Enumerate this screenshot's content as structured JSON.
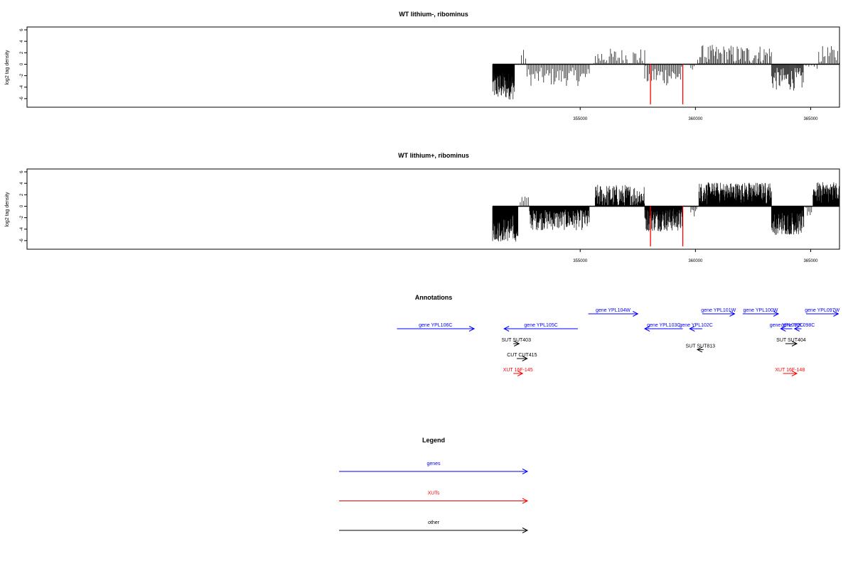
{
  "colors": {
    "genes": "#0000ff",
    "xuts": "#ff0000",
    "other": "#000000",
    "marker": "#ff0000",
    "signal": "#000000"
  },
  "chart_data": [
    {
      "type": "bar",
      "title": "WT lithium-, ribominus",
      "ylabel": "log2 tag density",
      "xlim": [
        331000,
        366250
      ],
      "ylim": [
        -7.5,
        6.5
      ],
      "yticks": [
        6,
        4,
        2,
        0,
        -2,
        -4,
        -6
      ],
      "xticks": [
        355000,
        360000,
        365000
      ],
      "baseline_range": [
        351200,
        366250
      ],
      "marker_lines": [
        358050,
        359450
      ],
      "marker_ymin": -7.0,
      "grid": false,
      "segments": [
        {
          "start": 351200,
          "end": 352150,
          "base": -3.8,
          "amp": 2.4,
          "step": 12
        },
        {
          "start": 352450,
          "end": 352700,
          "base": 1.6,
          "amp": 1.0,
          "step": 90
        },
        {
          "start": 352700,
          "end": 355400,
          "base": -2.2,
          "amp": 1.6,
          "step": 55
        },
        {
          "start": 355600,
          "end": 357800,
          "base": 1.2,
          "amp": 1.6,
          "step": 55
        },
        {
          "start": 357800,
          "end": 359450,
          "base": -2.0,
          "amp": 1.8,
          "step": 50
        },
        {
          "start": 359800,
          "end": 360000,
          "base": -0.8,
          "amp": 0.6,
          "step": 70
        },
        {
          "start": 360100,
          "end": 363300,
          "base": 1.6,
          "amp": 1.8,
          "step": 45
        },
        {
          "start": 363300,
          "end": 364700,
          "base": -2.6,
          "amp": 2.0,
          "step": 30
        },
        {
          "start": 364800,
          "end": 365300,
          "base": -0.4,
          "amp": 0.4,
          "step": 120
        },
        {
          "start": 365350,
          "end": 366250,
          "base": 1.6,
          "amp": 1.6,
          "step": 55
        }
      ]
    },
    {
      "type": "bar",
      "title": "WT lithium+, ribominus",
      "ylabel": "log2 tag density",
      "xlim": [
        331000,
        366250
      ],
      "ylim": [
        -7.5,
        6.5
      ],
      "yticks": [
        6,
        4,
        2,
        0,
        -2,
        -4,
        -6
      ],
      "xticks": [
        355000,
        360000,
        365000
      ],
      "baseline_range": [
        351200,
        366250
      ],
      "marker_lines": [
        358050,
        359450
      ],
      "marker_ymin": -7.0,
      "grid": false,
      "segments": [
        {
          "start": 351200,
          "end": 352300,
          "base": -3.8,
          "amp": 2.4,
          "step": 10
        },
        {
          "start": 352400,
          "end": 352800,
          "base": 1.0,
          "amp": 1.4,
          "step": 70
        },
        {
          "start": 352800,
          "end": 355400,
          "base": -2.4,
          "amp": 1.8,
          "step": 18
        },
        {
          "start": 355650,
          "end": 357800,
          "base": 1.8,
          "amp": 2.0,
          "step": 18
        },
        {
          "start": 357800,
          "end": 359450,
          "base": -2.4,
          "amp": 2.0,
          "step": 14
        },
        {
          "start": 359800,
          "end": 360050,
          "base": -1.0,
          "amp": 0.8,
          "step": 50
        },
        {
          "start": 360150,
          "end": 363300,
          "base": 2.2,
          "amp": 2.0,
          "step": 10
        },
        {
          "start": 363300,
          "end": 364700,
          "base": -2.8,
          "amp": 2.2,
          "step": 10
        },
        {
          "start": 364800,
          "end": 365050,
          "base": -1.0,
          "amp": 0.8,
          "step": 60
        },
        {
          "start": 365100,
          "end": 366250,
          "base": 2.2,
          "amp": 2.0,
          "step": 10
        }
      ]
    }
  ],
  "annotations": {
    "title": "Annotations",
    "xlim": [
      331000,
      366250
    ],
    "features": [
      {
        "label": "gene YPL106C",
        "start": 347050,
        "end": 350400,
        "strand": "+",
        "type": "genes",
        "row": 0
      },
      {
        "label": "gene YPL105C",
        "start": 351700,
        "end": 354900,
        "strand": "-",
        "type": "genes",
        "row": 0
      },
      {
        "label": "gene YPL104W",
        "start": 355350,
        "end": 357500,
        "strand": "+",
        "type": "genes",
        "row": -1
      },
      {
        "label": "gene YPL103C",
        "start": 357800,
        "end": 359450,
        "strand": "-",
        "type": "genes",
        "row": 0
      },
      {
        "label": "gene YPL102C",
        "start": 359750,
        "end": 360300,
        "strand": "-",
        "type": "genes",
        "row": 0
      },
      {
        "label": "gene YPL101W",
        "start": 360300,
        "end": 361700,
        "strand": "+",
        "type": "genes",
        "row": -1
      },
      {
        "label": "gene YPL100W",
        "start": 362050,
        "end": 363600,
        "strand": "+",
        "type": "genes",
        "row": -1
      },
      {
        "label": "gene YPL099C",
        "start": 363700,
        "end": 364200,
        "strand": "-",
        "type": "genes",
        "row": 0
      },
      {
        "label": "gene YPL098C",
        "start": 364300,
        "end": 364600,
        "strand": "-",
        "type": "genes",
        "row": 0
      },
      {
        "label": "gene YPL097W",
        "start": 364800,
        "end": 366200,
        "strand": "+",
        "type": "genes",
        "row": -1
      },
      {
        "label": "SUT SUT403",
        "start": 352100,
        "end": 352350,
        "strand": "+",
        "type": "other",
        "row": 1
      },
      {
        "label": "CUT CUT415",
        "start": 352250,
        "end": 352700,
        "strand": "+",
        "type": "other",
        "row": 2
      },
      {
        "label": "XUT 16F-145",
        "start": 352100,
        "end": 352500,
        "strand": "+",
        "type": "xuts",
        "row": 3
      },
      {
        "label": "SUT SUT813",
        "start": 360080,
        "end": 360350,
        "strand": "-",
        "type": "other",
        "row": 1.4
      },
      {
        "label": "SUT SUT404",
        "start": 363900,
        "end": 364400,
        "strand": "+",
        "type": "other",
        "row": 1
      },
      {
        "label": "XUT 16F-148",
        "start": 363800,
        "end": 364400,
        "strand": "+",
        "type": "xuts",
        "row": 3
      }
    ]
  },
  "legend": {
    "title": "Legend",
    "items": [
      {
        "label": "genes",
        "type": "genes"
      },
      {
        "label": "XUTs",
        "type": "xuts"
      },
      {
        "label": "other",
        "type": "other"
      }
    ]
  }
}
